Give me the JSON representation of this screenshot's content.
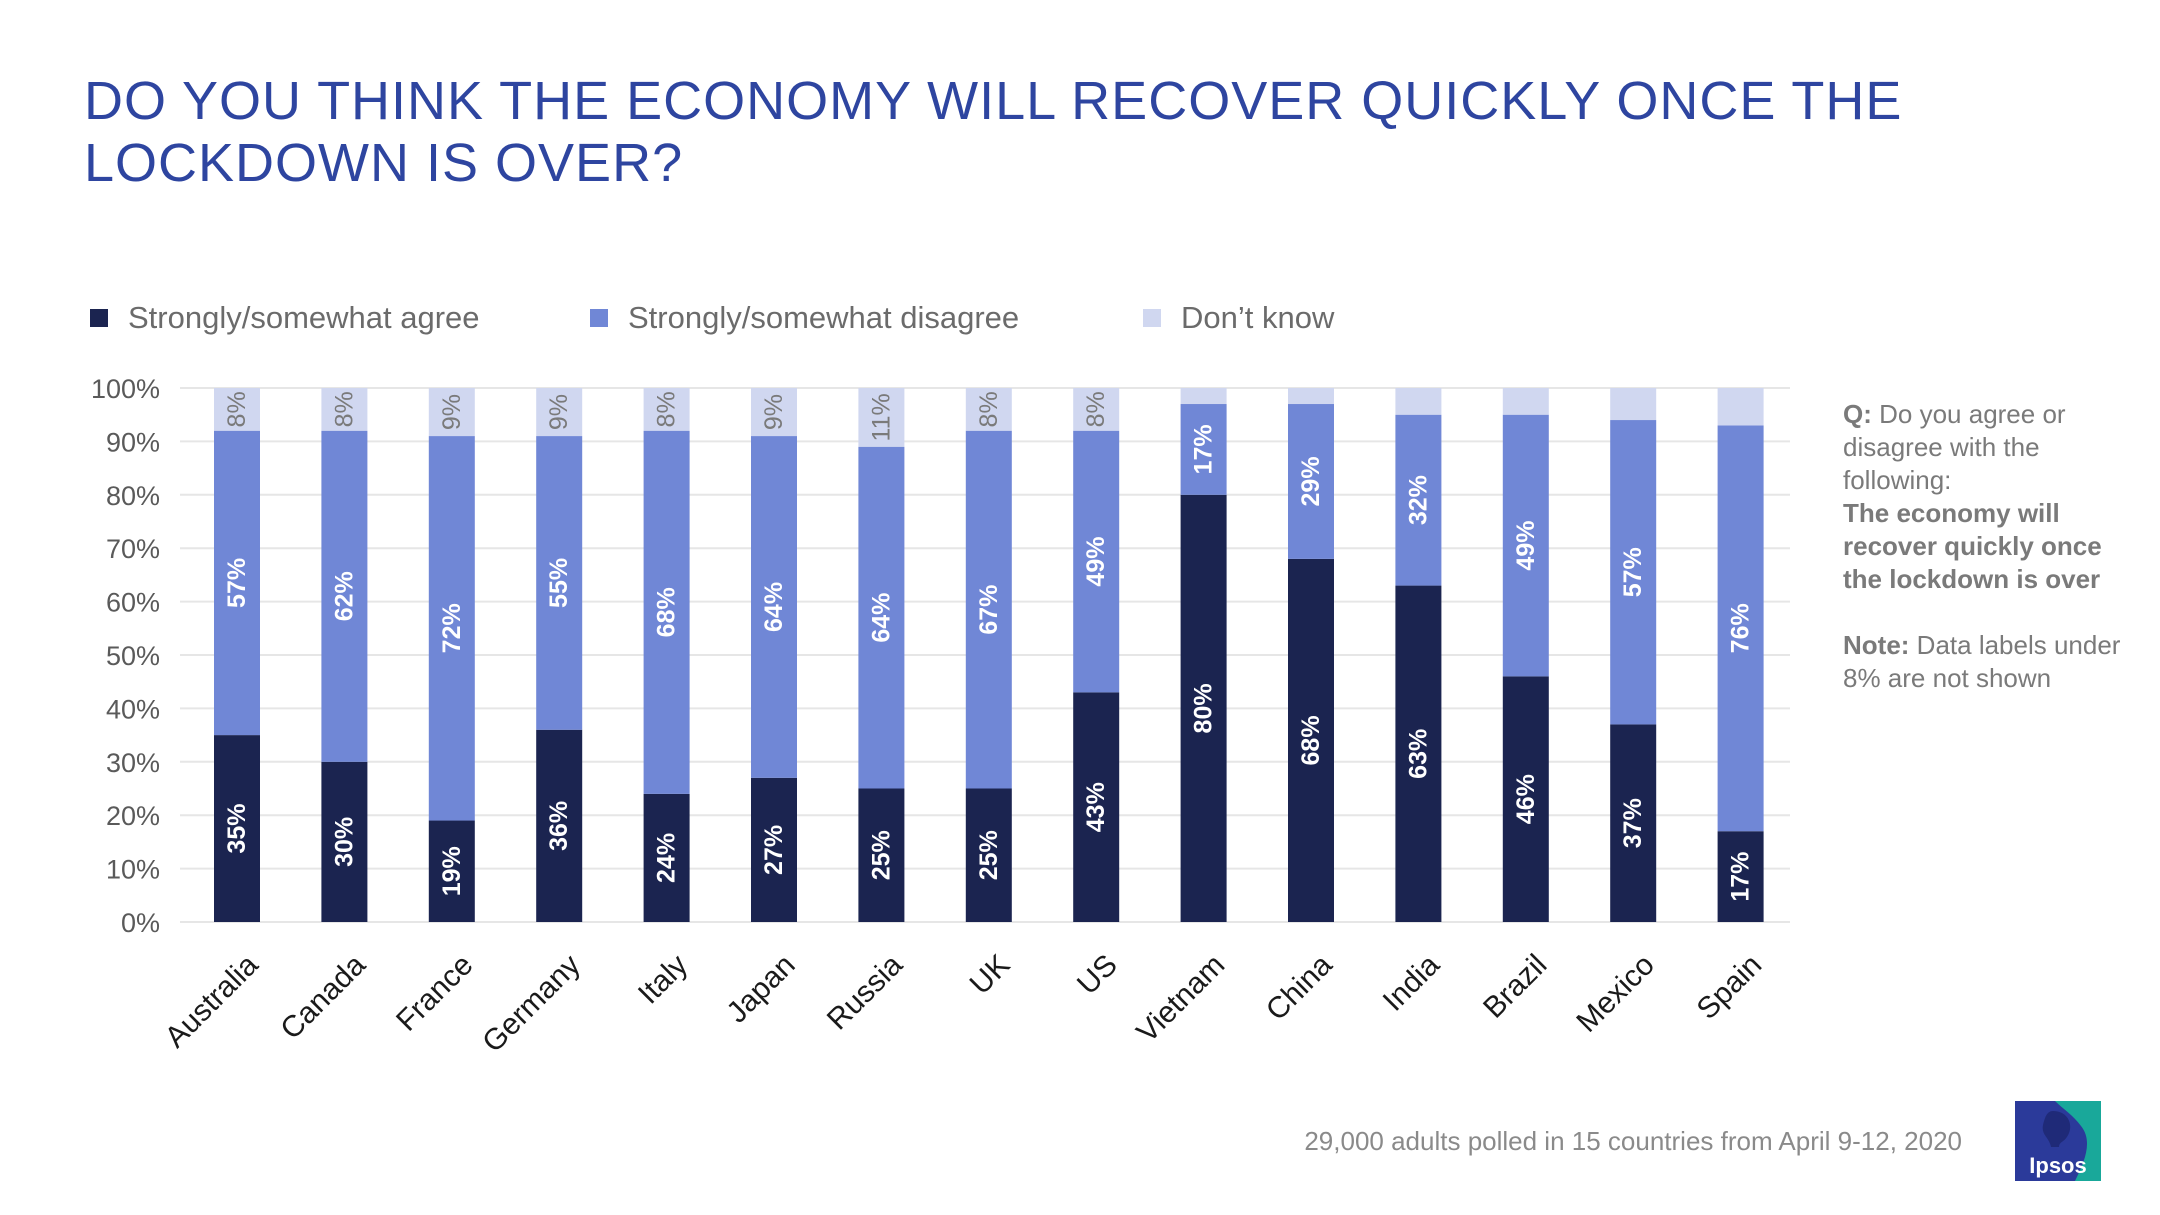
{
  "title": "DO YOU THINK THE ECONOMY WILL RECOVER QUICKLY ONCE THE LOCKDOWN IS OVER?",
  "side_note": {
    "q_label": "Q:",
    "q_text": "Do you agree or disagree with the following:",
    "statement": "The economy will recover quickly once the lockdown is over",
    "note_label": "Note:",
    "note_text": "Data labels under 8% are not shown"
  },
  "footer": "29,000 adults polled in 15 countries from April 9-12, 2020",
  "logo": "Ipsos",
  "chart_data": {
    "type": "bar",
    "stacked": true,
    "orientation": "vertical",
    "ylim": [
      0,
      100
    ],
    "yticks": [
      "0%",
      "10%",
      "20%",
      "30%",
      "40%",
      "50%",
      "60%",
      "70%",
      "80%",
      "90%",
      "100%"
    ],
    "grid": true,
    "legend_position": "top",
    "label_threshold": 8,
    "categories": [
      "Australia",
      "Canada",
      "France",
      "Germany",
      "Italy",
      "Japan",
      "Russia",
      "UK",
      "US",
      "Vietnam",
      "China",
      "India",
      "Brazil",
      "Mexico",
      "Spain"
    ],
    "series": [
      {
        "name": "Strongly/somewhat agree",
        "color": "#1b2450",
        "label_color": "#ffffff",
        "values": [
          35,
          30,
          19,
          36,
          24,
          27,
          25,
          25,
          43,
          80,
          68,
          63,
          46,
          37,
          17
        ]
      },
      {
        "name": "Strongly/somewhat disagree",
        "color": "#7087d6",
        "label_color": "#ffffff",
        "values": [
          57,
          62,
          72,
          55,
          68,
          64,
          64,
          67,
          49,
          17,
          29,
          32,
          49,
          57,
          76
        ]
      },
      {
        "name": "Don’t know",
        "color": "#d0d7f0",
        "label_color": "#7a7a7a",
        "values": [
          8,
          8,
          9,
          9,
          8,
          9,
          11,
          8,
          8,
          3,
          3,
          5,
          5,
          6,
          7
        ]
      }
    ]
  }
}
